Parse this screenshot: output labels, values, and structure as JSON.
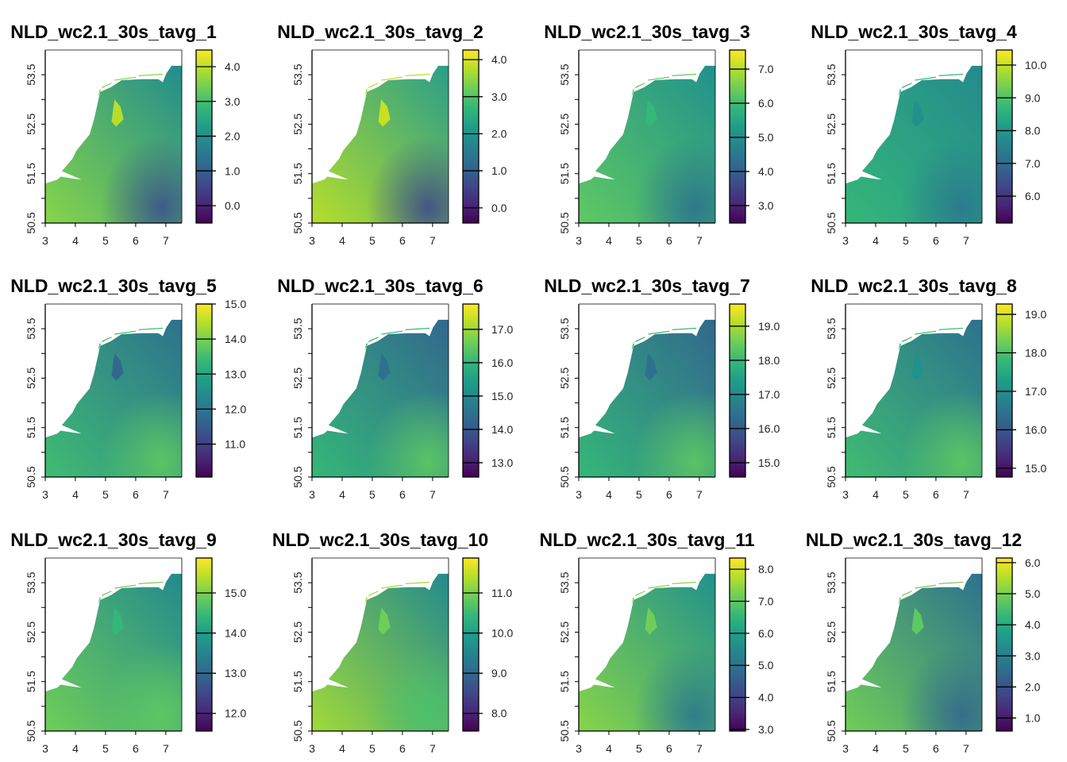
{
  "axes": {
    "xlim": [
      3,
      7.53
    ],
    "ylim": [
      50.5,
      54.0
    ],
    "x_ticks": [
      3,
      4,
      5,
      6,
      7
    ],
    "y_tick_labels": [
      "50.5",
      "51.5",
      "52.5",
      "53.5"
    ],
    "y_ticks": [
      50.5,
      51,
      51.5,
      52,
      52.5,
      53,
      53.5
    ]
  },
  "colormap": "viridis",
  "panels": [
    {
      "title": "NLD_wc2.1_30s_tavg_1",
      "legend": {
        "min": -0.5,
        "max": 4.48,
        "ticks": [
          "0.0",
          "1.0",
          "2.0",
          "3.0",
          "4.0"
        ]
      },
      "colors": {
        "southwest": "#86d549",
        "northeast": "#228c8d",
        "southeast": "#3b528b",
        "lake": "#b5de2b"
      }
    },
    {
      "title": "NLD_wc2.1_30s_tavg_2",
      "legend": {
        "min": -0.41,
        "max": 4.26,
        "ticks": [
          "0.0",
          "1.0",
          "2.0",
          "3.0",
          "4.0"
        ]
      },
      "colors": {
        "southwest": "#b5de2b",
        "northeast": "#2a9d8a",
        "southeast": "#3e4a89",
        "lake": "#c8e020"
      }
    },
    {
      "title": "NLD_wc2.1_30s_tavg_3",
      "legend": {
        "min": 2.49,
        "max": 7.56,
        "ticks": [
          "3.0",
          "4.0",
          "5.0",
          "6.0",
          "7.0"
        ]
      },
      "colors": {
        "southwest": "#5ec962",
        "northeast": "#21918c",
        "southeast": "#2c728e",
        "lake": "#35b779"
      }
    },
    {
      "title": "NLD_wc2.1_30s_tavg_4",
      "legend": {
        "min": 5.18,
        "max": 10.46,
        "ticks": [
          "6.0",
          "7.0",
          "8.0",
          "9.0",
          "10.0"
        ]
      },
      "colors": {
        "southwest": "#35b779",
        "northeast": "#238a8d",
        "southeast": "#2a788e",
        "lake": "#21918c"
      }
    },
    {
      "title": "NLD_wc2.1_30s_tavg_5",
      "legend": {
        "min": 10.06,
        "max": 15.0,
        "ticks": [
          "11.0",
          "12.0",
          "13.0",
          "14.0",
          "15.0"
        ]
      },
      "colors": {
        "southwest": "#3fbc73",
        "northeast": "#2c728e",
        "southeast": "#5ec962",
        "lake": "#31688e"
      }
    },
    {
      "title": "NLD_wc2.1_30s_tavg_6",
      "legend": {
        "min": 12.57,
        "max": 17.76,
        "ticks": [
          "13.0",
          "14.0",
          "15.0",
          "16.0",
          "17.0"
        ]
      },
      "colors": {
        "southwest": "#35b779",
        "northeast": "#31688e",
        "southeast": "#5ec962",
        "lake": "#2c728e"
      }
    },
    {
      "title": "NLD_wc2.1_30s_tavg_7",
      "legend": {
        "min": 14.58,
        "max": 19.65,
        "ticks": [
          "15.0",
          "16.0",
          "17.0",
          "18.0",
          "19.0"
        ]
      },
      "colors": {
        "southwest": "#35b779",
        "northeast": "#31688e",
        "southeast": "#5ec962",
        "lake": "#2c728e"
      }
    },
    {
      "title": "NLD_wc2.1_30s_tavg_8",
      "legend": {
        "min": 14.77,
        "max": 19.27,
        "ticks": [
          "15.0",
          "16.0",
          "17.0",
          "18.0",
          "19.0"
        ]
      },
      "colors": {
        "southwest": "#3fbc73",
        "northeast": "#2c728e",
        "southeast": "#5ec962",
        "lake": "#21918c"
      }
    },
    {
      "title": "NLD_wc2.1_30s_tavg_9",
      "legend": {
        "min": 11.56,
        "max": 15.87,
        "ticks": [
          "12.0",
          "13.0",
          "14.0",
          "15.0"
        ]
      },
      "colors": {
        "southwest": "#6ece58",
        "northeast": "#238a8d",
        "southeast": "#5ec962",
        "lake": "#35b779"
      }
    },
    {
      "title": "NLD_wc2.1_30s_tavg_10",
      "legend": {
        "min": 7.56,
        "max": 11.87,
        "ticks": [
          "8.0",
          "9.0",
          "10.0",
          "11.0"
        ]
      },
      "colors": {
        "southwest": "#a0da39",
        "northeast": "#238a8d",
        "southeast": "#4ac16d",
        "lake": "#6ece58"
      }
    },
    {
      "title": "NLD_wc2.1_30s_tavg_11",
      "legend": {
        "min": 2.95,
        "max": 8.35,
        "ticks": [
          "3.0",
          "4.0",
          "5.0",
          "6.0",
          "7.0",
          "8.0"
        ]
      },
      "colors": {
        "southwest": "#86d549",
        "northeast": "#21918c",
        "southeast": "#2a788e",
        "lake": "#6ece58"
      }
    },
    {
      "title": "NLD_wc2.1_30s_tavg_12",
      "legend": {
        "min": 0.58,
        "max": 6.15,
        "ticks": [
          "1.0",
          "2.0",
          "3.0",
          "4.0",
          "5.0",
          "6.0"
        ]
      },
      "colors": {
        "southwest": "#6ece58",
        "northeast": "#2c728e",
        "southeast": "#31688e",
        "lake": "#5ec962"
      }
    }
  ]
}
